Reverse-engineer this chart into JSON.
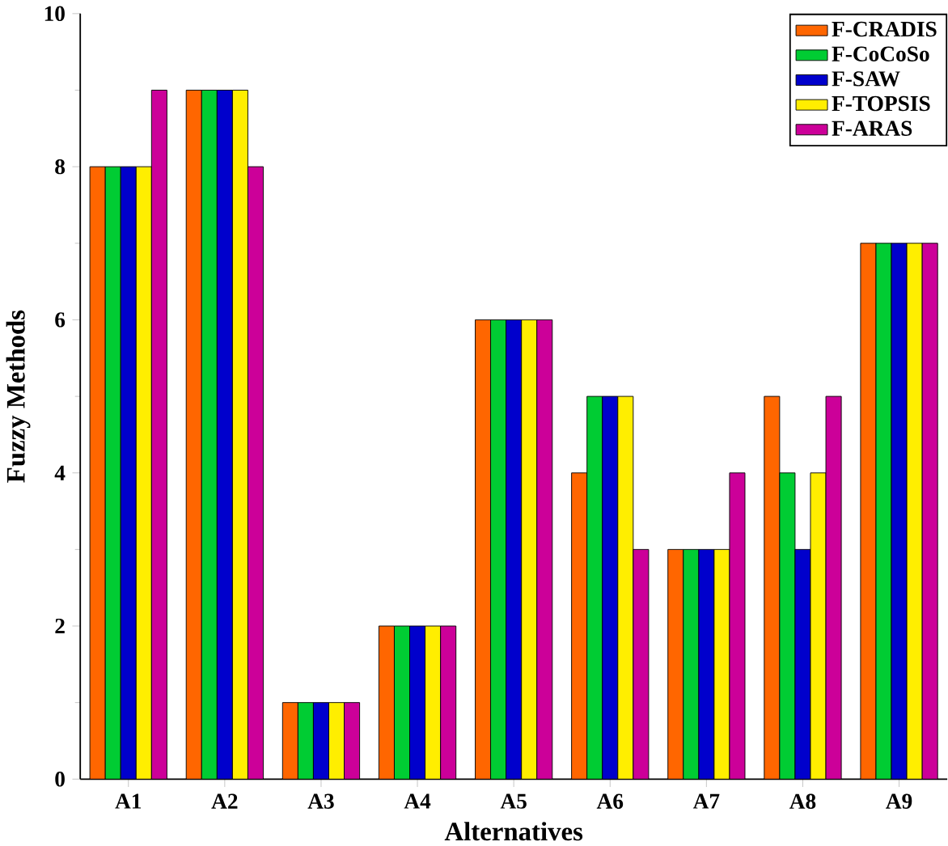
{
  "chart_data": {
    "type": "bar",
    "xlabel": "Alternatives",
    "ylabel": "Fuzzy Methods",
    "categories": [
      "A1",
      "A2",
      "A3",
      "A4",
      "A5",
      "A6",
      "A7",
      "A8",
      "A9"
    ],
    "series": [
      {
        "name": "F-CRADIS",
        "color": "#ff6600",
        "values": [
          8,
          9,
          1,
          2,
          6,
          4,
          3,
          5,
          7
        ]
      },
      {
        "name": "F-CoCoSo",
        "color": "#00cc33",
        "values": [
          8,
          9,
          1,
          2,
          6,
          5,
          3,
          4,
          7
        ]
      },
      {
        "name": "F-SAW",
        "color": "#0000cc",
        "values": [
          8,
          9,
          1,
          2,
          6,
          5,
          3,
          3,
          7
        ]
      },
      {
        "name": "F-TOPSIS",
        "color": "#ffee00",
        "values": [
          8,
          9,
          1,
          2,
          6,
          5,
          3,
          4,
          7
        ]
      },
      {
        "name": "F-ARAS",
        "color": "#cc0099",
        "values": [
          9,
          8,
          1,
          2,
          6,
          3,
          4,
          5,
          7
        ]
      }
    ],
    "ylim": [
      0,
      10
    ],
    "yticks": [
      0,
      2,
      4,
      6,
      8,
      10
    ],
    "legend": "top right"
  }
}
